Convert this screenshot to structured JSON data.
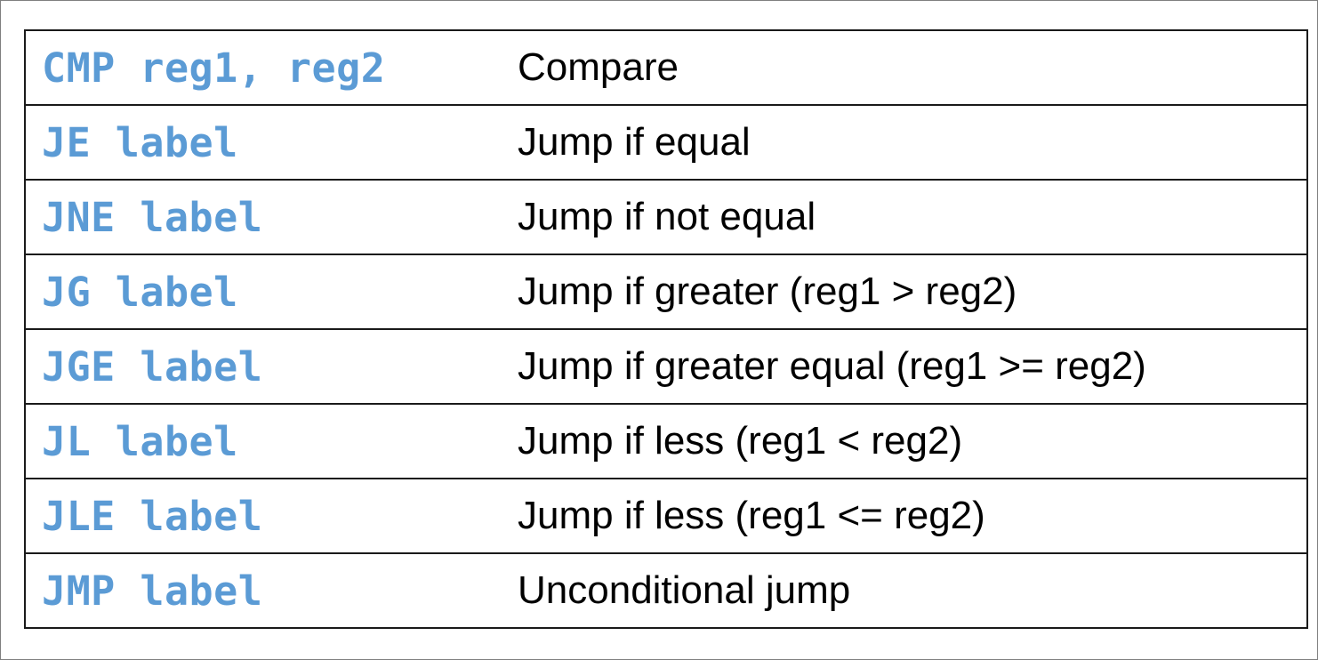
{
  "table": {
    "colors": {
      "code": "#5b9bd5",
      "description": "#000000",
      "border": "#1a1a1a"
    },
    "rows": [
      {
        "instruction": "CMP reg1, reg2",
        "description": "Compare"
      },
      {
        "instruction": "JE label",
        "description": "Jump if equal"
      },
      {
        "instruction": "JNE label",
        "description": "Jump if not equal"
      },
      {
        "instruction": "JG label",
        "description": "Jump if greater (reg1 > reg2)"
      },
      {
        "instruction": "JGE label",
        "description": "Jump if greater equal (reg1 >= reg2)"
      },
      {
        "instruction": "JL label",
        "description": "Jump if less (reg1 < reg2)"
      },
      {
        "instruction": "JLE label",
        "description": "Jump if less (reg1 <= reg2)"
      },
      {
        "instruction": "JMP label",
        "description": "Unconditional jump"
      }
    ]
  }
}
